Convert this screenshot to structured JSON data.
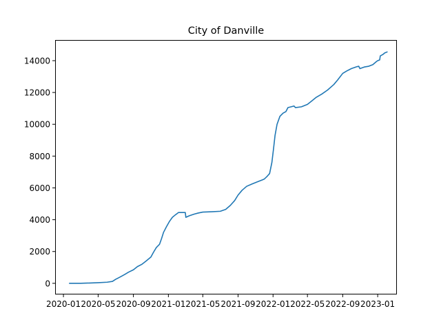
{
  "chart_data": {
    "type": "line",
    "title": "City of Danville",
    "xlabel": "",
    "ylabel": "",
    "xlim": [
      "2019-12-03",
      "2023-03-09"
    ],
    "ylim": [
      -700,
      15300
    ],
    "grid": false,
    "legend": "none",
    "x_ticks": [
      {
        "date": "2020-01-01",
        "label": "2020-01"
      },
      {
        "date": "2020-05-01",
        "label": "2020-05"
      },
      {
        "date": "2020-09-01",
        "label": "2020-09"
      },
      {
        "date": "2021-01-01",
        "label": "2021-01"
      },
      {
        "date": "2021-05-01",
        "label": "2021-05"
      },
      {
        "date": "2021-09-01",
        "label": "2021-09"
      },
      {
        "date": "2022-01-01",
        "label": "2022-01"
      },
      {
        "date": "2022-05-01",
        "label": "2022-05"
      },
      {
        "date": "2022-09-01",
        "label": "2022-09"
      },
      {
        "date": "2023-01-01",
        "label": "2023-01"
      }
    ],
    "y_ticks": [
      {
        "value": 0,
        "label": "0"
      },
      {
        "value": 2000,
        "label": "2000"
      },
      {
        "value": 4000,
        "label": "4000"
      },
      {
        "value": 6000,
        "label": "6000"
      },
      {
        "value": 8000,
        "label": "8000"
      },
      {
        "value": 10000,
        "label": "10000"
      },
      {
        "value": 12000,
        "label": "12000"
      },
      {
        "value": 14000,
        "label": "14000"
      }
    ],
    "series": [
      {
        "color": "#1f77b4",
        "points": [
          [
            "2020-01-22",
            0
          ],
          [
            "2020-03-01",
            0
          ],
          [
            "2020-04-01",
            20
          ],
          [
            "2020-05-01",
            40
          ],
          [
            "2020-06-01",
            70
          ],
          [
            "2020-06-20",
            120
          ],
          [
            "2020-07-01",
            250
          ],
          [
            "2020-07-15",
            380
          ],
          [
            "2020-08-01",
            550
          ],
          [
            "2020-08-15",
            700
          ],
          [
            "2020-09-01",
            850
          ],
          [
            "2020-09-15",
            1050
          ],
          [
            "2020-10-01",
            1200
          ],
          [
            "2020-10-15",
            1400
          ],
          [
            "2020-11-01",
            1650
          ],
          [
            "2020-11-10",
            1950
          ],
          [
            "2020-11-20",
            2250
          ],
          [
            "2020-12-01",
            2450
          ],
          [
            "2020-12-08",
            2800
          ],
          [
            "2020-12-15",
            3200
          ],
          [
            "2020-12-25",
            3550
          ],
          [
            "2021-01-05",
            3900
          ],
          [
            "2021-01-15",
            4150
          ],
          [
            "2021-01-25",
            4300
          ],
          [
            "2021-02-05",
            4450
          ],
          [
            "2021-03-01",
            4450
          ],
          [
            "2021-03-03",
            4150
          ],
          [
            "2021-03-15",
            4250
          ],
          [
            "2021-04-01",
            4350
          ],
          [
            "2021-04-15",
            4420
          ],
          [
            "2021-05-01",
            4480
          ],
          [
            "2021-06-01",
            4500
          ],
          [
            "2021-07-01",
            4530
          ],
          [
            "2021-07-20",
            4650
          ],
          [
            "2021-08-05",
            4900
          ],
          [
            "2021-08-20",
            5200
          ],
          [
            "2021-09-01",
            5550
          ],
          [
            "2021-09-15",
            5850
          ],
          [
            "2021-10-01",
            6100
          ],
          [
            "2021-10-20",
            6250
          ],
          [
            "2021-11-10",
            6400
          ],
          [
            "2021-12-01",
            6550
          ],
          [
            "2021-12-10",
            6700
          ],
          [
            "2021-12-20",
            6900
          ],
          [
            "2021-12-28",
            7600
          ],
          [
            "2022-01-03",
            8500
          ],
          [
            "2022-01-08",
            9300
          ],
          [
            "2022-01-15",
            10000
          ],
          [
            "2022-01-25",
            10500
          ],
          [
            "2022-02-05",
            10700
          ],
          [
            "2022-02-15",
            10800
          ],
          [
            "2022-02-22",
            11050
          ],
          [
            "2022-03-05",
            11100
          ],
          [
            "2022-03-15",
            11150
          ],
          [
            "2022-03-20",
            11050
          ],
          [
            "2022-04-10",
            11100
          ],
          [
            "2022-05-01",
            11250
          ],
          [
            "2022-05-15",
            11450
          ],
          [
            "2022-06-01",
            11700
          ],
          [
            "2022-06-20",
            11900
          ],
          [
            "2022-07-10",
            12150
          ],
          [
            "2022-08-01",
            12500
          ],
          [
            "2022-08-15",
            12800
          ],
          [
            "2022-09-01",
            13200
          ],
          [
            "2022-09-15",
            13350
          ],
          [
            "2022-10-01",
            13500
          ],
          [
            "2022-10-20",
            13620
          ],
          [
            "2022-10-27",
            13650
          ],
          [
            "2022-10-31",
            13500
          ],
          [
            "2022-11-15",
            13600
          ],
          [
            "2022-12-01",
            13650
          ],
          [
            "2022-12-15",
            13750
          ],
          [
            "2022-12-28",
            13950
          ],
          [
            "2023-01-01",
            14000
          ],
          [
            "2023-01-08",
            14050
          ],
          [
            "2023-01-10",
            14300
          ],
          [
            "2023-01-15",
            14350
          ],
          [
            "2023-01-20",
            14400
          ],
          [
            "2023-01-25",
            14480
          ],
          [
            "2023-02-03",
            14550
          ]
        ]
      }
    ]
  }
}
